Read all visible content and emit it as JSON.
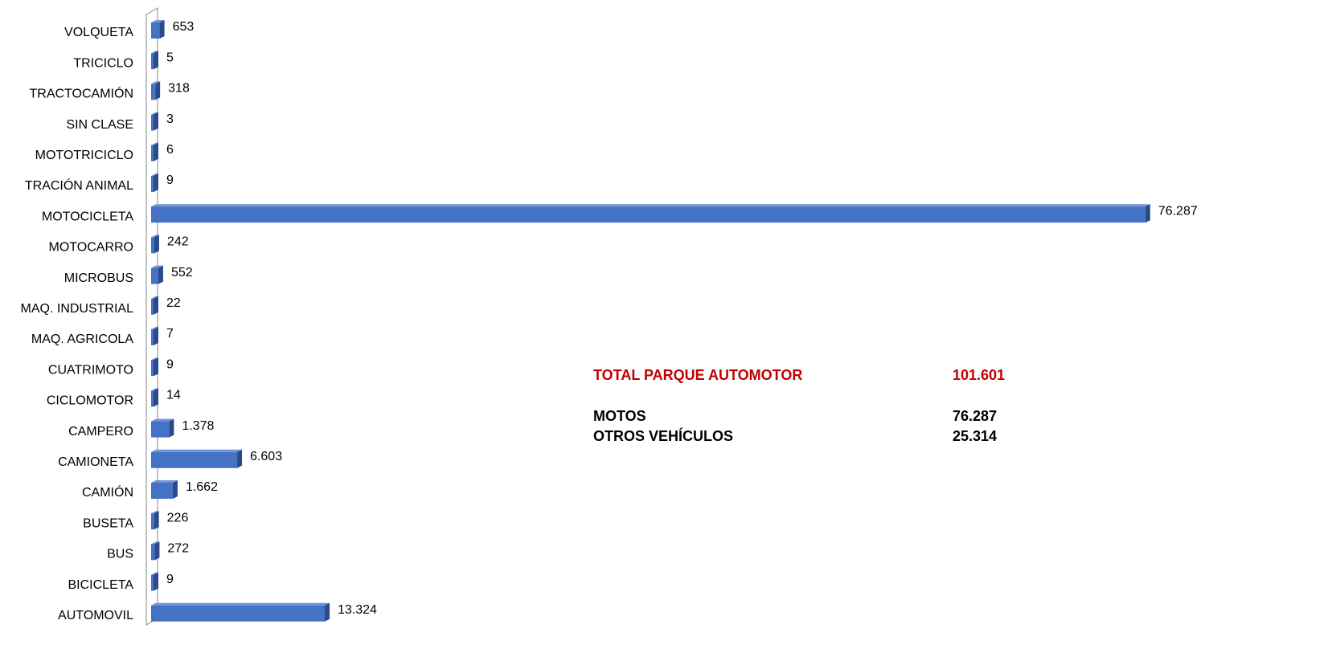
{
  "chart_data": {
    "type": "bar",
    "orientation": "horizontal",
    "color": "#4472c4",
    "categories": [
      "VOLQUETA",
      "TRICICLO",
      "TRACTOCAMIÓN",
      "SIN CLASE",
      "MOTOTRICICLO",
      "TRACIÓN ANIMAL",
      "MOTOCICLETA",
      "MOTOCARRO",
      "MICROBUS",
      "MAQ. INDUSTRIAL",
      "MAQ. AGRICOLA",
      "CUATRIMOTO",
      "CICLOMOTOR",
      "CAMPERO",
      "CAMIONETA",
      "CAMIÓN",
      "BUSETA",
      "BUS",
      "BICICLETA",
      "AUTOMOVIL"
    ],
    "values": [
      653,
      5,
      318,
      3,
      6,
      9,
      76287,
      242,
      552,
      22,
      7,
      9,
      14,
      1378,
      6603,
      1662,
      226,
      272,
      9,
      13324
    ],
    "value_labels": [
      "653",
      "5",
      "318",
      "3",
      "6",
      "9",
      "76.287",
      "242",
      "552",
      "22",
      "7",
      "9",
      "14",
      "1.378",
      "6.603",
      "1.662",
      "226",
      "272",
      "9",
      "13.324"
    ],
    "xlim": [
      0,
      80000
    ],
    "summary": [
      {
        "label": "TOTAL PARQUE AUTOMOTOR",
        "value": "101.601",
        "color": "#c00000"
      },
      {
        "label": "MOTOS",
        "value": "76.287",
        "color": "#000000"
      },
      {
        "label": "OTROS VEHÍCULOS",
        "value": "25.314",
        "color": "#000000"
      }
    ]
  }
}
